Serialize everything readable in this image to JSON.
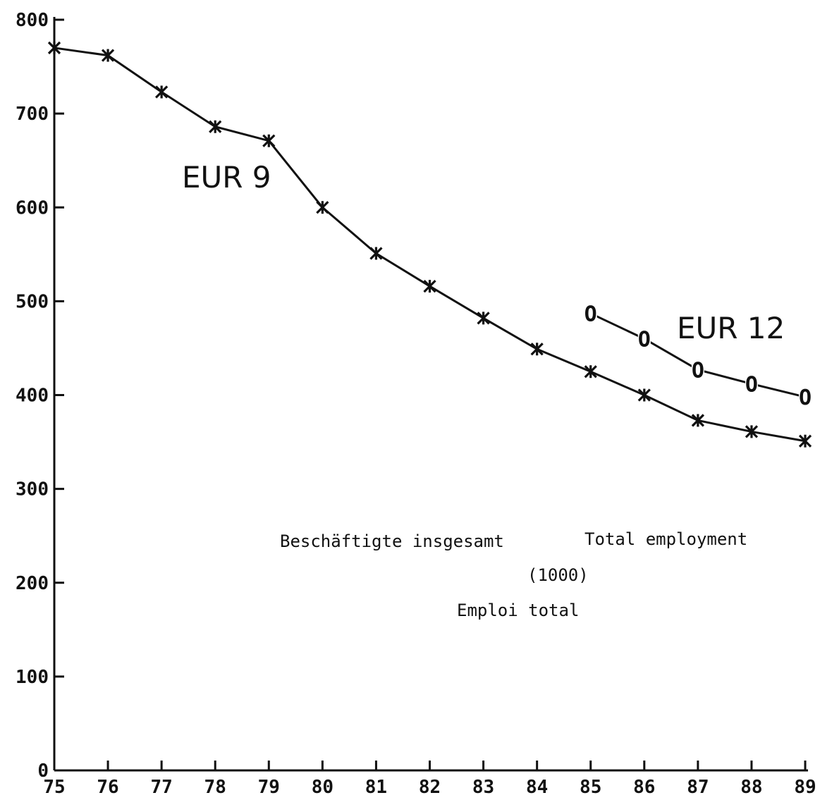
{
  "chart_data": {
    "type": "line",
    "x": [
      "75",
      "76",
      "77",
      "78",
      "79",
      "80",
      "81",
      "82",
      "83",
      "84",
      "85",
      "86",
      "87",
      "88",
      "89"
    ],
    "ylim": [
      0,
      800
    ],
    "yticks": [
      0,
      100,
      200,
      300,
      400,
      500,
      600,
      700,
      800
    ],
    "grid": false,
    "series": [
      {
        "name": "EUR 9",
        "marker": "asterisk",
        "x": [
          "75",
          "76",
          "77",
          "78",
          "79",
          "80",
          "81",
          "82",
          "83",
          "84",
          "85",
          "86",
          "87",
          "88",
          "89"
        ],
        "values": [
          770,
          762,
          723,
          686,
          671,
          600,
          551,
          516,
          482,
          449,
          425,
          400,
          373,
          361,
          351
        ]
      },
      {
        "name": "EUR 12",
        "marker": "O",
        "x": [
          "85",
          "86",
          "87",
          "88",
          "89"
        ],
        "values": [
          487,
          460,
          427,
          412,
          398
        ]
      }
    ],
    "annotations": {
      "line1_de": "Beschäftigte insgesamt",
      "line1_en": "Total employment",
      "unit": "(1000)",
      "line3_fr": "Emploi total"
    },
    "marker_o_glyph": "O",
    "colors": {
      "ink": "#111111",
      "background": "#ffffff"
    }
  }
}
